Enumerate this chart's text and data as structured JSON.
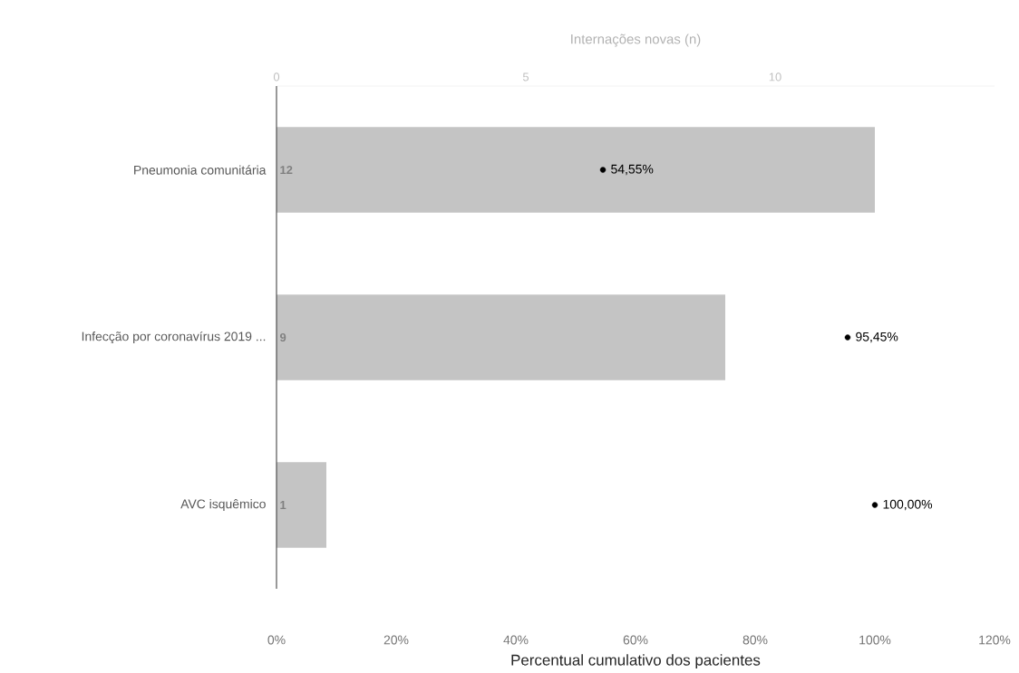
{
  "chart_data": {
    "type": "bar",
    "orientation": "horizontal",
    "marker": "circle",
    "xlabel": "Percentual cumulativo dos pacientes",
    "x2label": "Internações novas (n)",
    "categories": [
      "Pneumonia comunitária",
      "Infecção por coronavírus 2019 ...",
      "AVC isquêmico"
    ],
    "series": [
      {
        "type": "bar",
        "axis": "x2",
        "color": "#c4c4c4",
        "values": [
          12,
          9,
          1
        ],
        "value_labels": [
          "12",
          "9",
          "1"
        ]
      },
      {
        "type": "scatter",
        "color": "#000000",
        "values": [
          54.55,
          95.45,
          100
        ],
        "value_labels": [
          "54,55%",
          "95,45%",
          "100,00%"
        ]
      }
    ],
    "xlim": [
      0,
      120
    ],
    "xticks": [
      {
        "value": 0,
        "label": "0%"
      },
      {
        "value": 20,
        "label": "20%"
      },
      {
        "value": 40,
        "label": "40%"
      },
      {
        "value": 60,
        "label": "60%"
      },
      {
        "value": 80,
        "label": "80%"
      },
      {
        "value": 100,
        "label": "100%"
      },
      {
        "value": 120,
        "label": "120%"
      }
    ],
    "x2lim": [
      0,
      14.4
    ],
    "x2ticks": [
      0,
      5,
      10
    ]
  }
}
